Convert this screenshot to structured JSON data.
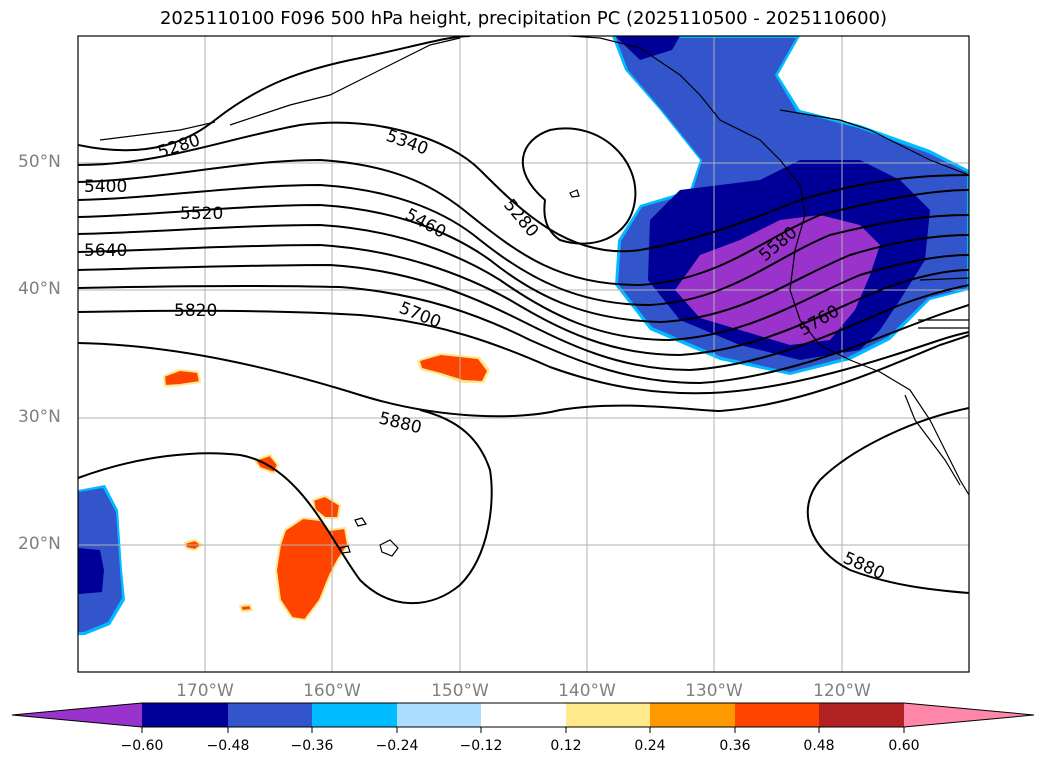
{
  "title": "2025110100 F096 500 hPa height, precipitation PC (2025110500 - 2025110600)",
  "map": {
    "lon_range": [
      -180,
      -110
    ],
    "lat_range": [
      10,
      60
    ],
    "lat_gridlines": [
      20,
      30,
      40,
      50
    ],
    "lon_gridlines": [
      -170,
      -160,
      -150,
      -140,
      -130,
      -120
    ],
    "lat_labels": [
      "20°N",
      "30°N",
      "40°N",
      "50°N"
    ],
    "lon_labels": [
      "170°W",
      "160°W",
      "150°W",
      "140°W",
      "130°W",
      "120°W"
    ],
    "contour_labels": [
      "5280",
      "5340",
      "5400",
      "5460",
      "5520",
      "5580",
      "5640",
      "5700",
      "5760",
      "5820",
      "5880",
      "5280",
      "5880",
      "5880"
    ]
  },
  "colorbar": {
    "colors": [
      "#9933cc",
      "#000099",
      "#3355cc",
      "#00bbff",
      "#aaddff",
      "#ffffff",
      "#ffe98a",
      "#ff9900",
      "#ff4400",
      "#b22222",
      "#ff88aa"
    ],
    "ticks": [
      "−0.60",
      "−0.48",
      "−0.36",
      "−0.24",
      "−0.12",
      "0.12",
      "0.24",
      "0.36",
      "0.48",
      "0.60"
    ]
  }
}
